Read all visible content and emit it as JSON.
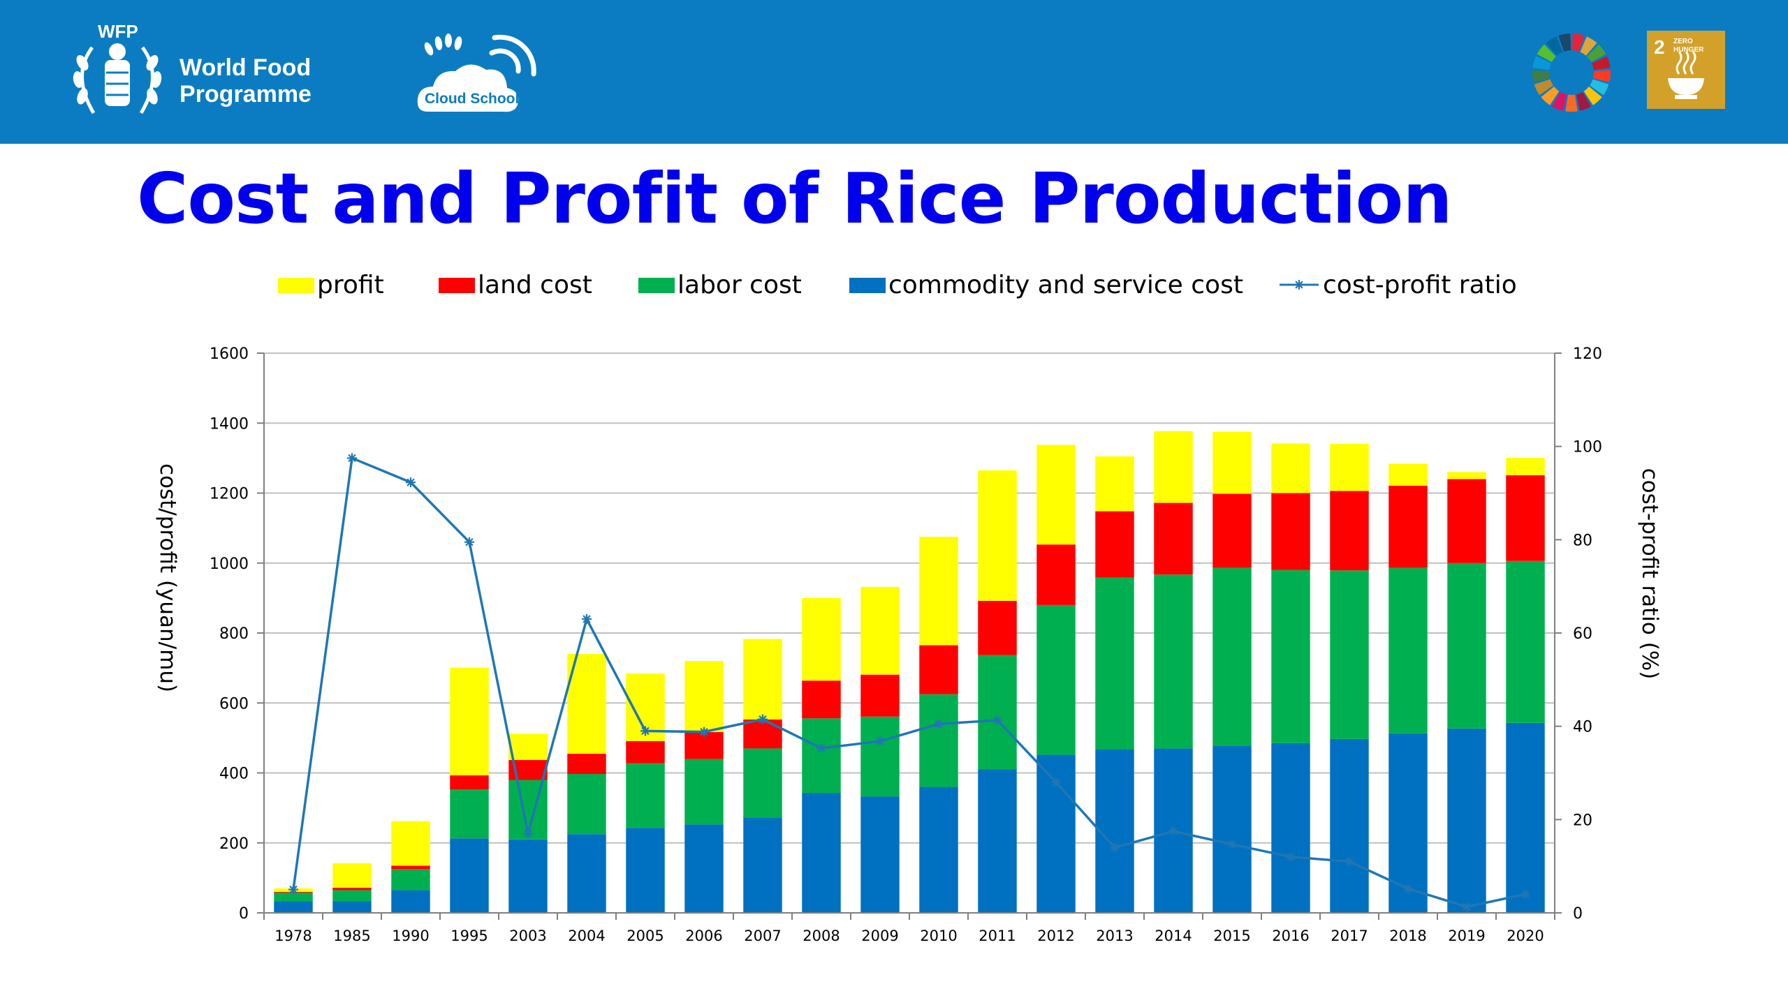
{
  "header": {
    "wfp_abbr": "WFP",
    "wfp_name_line1": "World Food",
    "wfp_name_line2": "Programme",
    "cloud_school": "Cloud School",
    "sdg_number": "2",
    "sdg_label": "ZERO HUNGER",
    "colors": {
      "band": "#0b7cc1",
      "sdg_tile": "#d3a029"
    },
    "icons": [
      "wfp-wheat-wreath-icon",
      "cloud-school-wheat-icon",
      "sdg-color-wheel-icon",
      "sdg2-bowl-icon"
    ]
  },
  "title": "Cost and Profit of Rice Production",
  "chart_data": {
    "type": "bar",
    "stacked": true,
    "title": "",
    "xlabel": "",
    "ylabel": "cost/profit (yuan/mu)",
    "y2label": "cost-profit ratio (%)",
    "ylim": [
      0,
      1600
    ],
    "y2lim": [
      0,
      120
    ],
    "yticks": [
      0,
      200,
      400,
      600,
      800,
      1000,
      1200,
      1400,
      1600
    ],
    "y2ticks": [
      0,
      20,
      40,
      60,
      80,
      100,
      120
    ],
    "grid": true,
    "legend_position": "top",
    "categories": [
      "1978",
      "1985",
      "1990",
      "1995",
      "2003",
      "2004",
      "2005",
      "2006",
      "2007",
      "2008",
      "2009",
      "2010",
      "2011",
      "2012",
      "2013",
      "2014",
      "2015",
      "2016",
      "2017",
      "2018",
      "2019",
      "2020"
    ],
    "series": [
      {
        "name": "commodity and service cost",
        "color": "#0070c0",
        "values": [
          33,
          33,
          65,
          213,
          210,
          225,
          243,
          253,
          273,
          343,
          333,
          360,
          410,
          452,
          468,
          470,
          478,
          485,
          497,
          513,
          527,
          543
        ]
      },
      {
        "name": "labor cost",
        "color": "#00b050",
        "values": [
          25,
          32,
          60,
          140,
          170,
          172,
          185,
          187,
          197,
          213,
          228,
          265,
          327,
          428,
          490,
          497,
          508,
          495,
          482,
          473,
          473,
          463
        ]
      },
      {
        "name": "land cost",
        "color": "#ff0000",
        "values": [
          2,
          7,
          10,
          40,
          57,
          58,
          63,
          77,
          83,
          108,
          120,
          140,
          155,
          173,
          190,
          205,
          212,
          220,
          227,
          235,
          240,
          245
        ]
      },
      {
        "name": "profit",
        "color": "#ffff00",
        "values": [
          10,
          70,
          127,
          308,
          75,
          285,
          193,
          203,
          230,
          236,
          251,
          310,
          373,
          285,
          157,
          205,
          177,
          142,
          135,
          63,
          20,
          50
        ]
      }
    ],
    "line": {
      "name": "cost-profit ratio",
      "color": "#1f77b4",
      "axis": "right",
      "values": [
        5,
        97.5,
        92.3,
        79.5,
        17,
        63,
        39,
        38.8,
        41.5,
        35.3,
        36.8,
        40.5,
        41.3,
        28,
        14,
        17.5,
        14.7,
        12,
        11,
        5.2,
        1.3,
        4
      ]
    },
    "legend_order": [
      "profit",
      "land cost",
      "labor cost",
      "commodity and service cost",
      "cost-profit ratio"
    ]
  }
}
